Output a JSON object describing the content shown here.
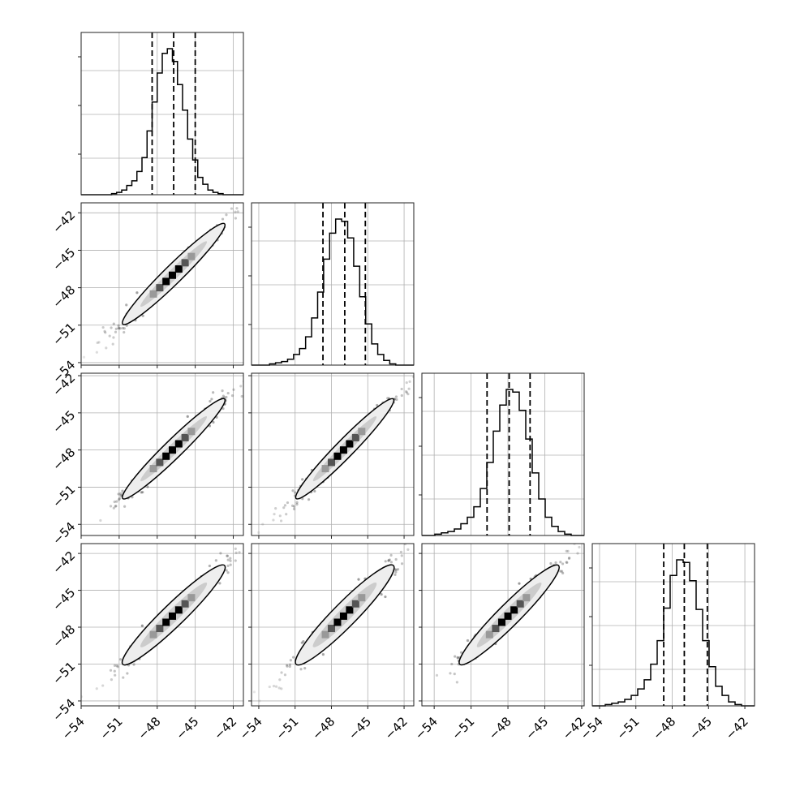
{
  "chart_data": {
    "type": "corner",
    "parameters": 4,
    "bins": [
      -53.5,
      -52.5,
      -51.5,
      -50.5,
      -49.5,
      -48.5,
      -47.5,
      -46.5,
      -45.5,
      -44.5,
      -43.5,
      -42.5,
      -41.5
    ],
    "histograms": [
      {
        "param": 1,
        "range": [
          -54.0,
          -41.2
        ],
        "bin_edges": [
          -54.0,
          -53.6,
          -53.2,
          -52.8,
          -52.4,
          -52.0,
          -51.6,
          -51.2,
          -50.8,
          -50.4,
          -50.0,
          -49.6,
          -49.2,
          -48.8,
          -48.4,
          -48.0,
          -47.6,
          -47.2,
          -46.8,
          -46.4,
          -46.0,
          -45.6,
          -45.2,
          -44.8,
          -44.4,
          -44.0,
          -43.6,
          -43.2,
          -42.8,
          -42.4,
          -42.0,
          -41.6,
          -41.2
        ],
        "counts": [
          0,
          0,
          0,
          0,
          0,
          0,
          1,
          2,
          4,
          8,
          12,
          20,
          32,
          55,
          80,
          105,
          122,
          126,
          115,
          95,
          73,
          48,
          30,
          15,
          9,
          4,
          2,
          1,
          0,
          0,
          0,
          0
        ],
        "quantiles": [
          -48.4,
          -46.7,
          -45.0
        ],
        "xlim": [
          -54.0,
          -41.2
        ]
      },
      {
        "param": 2,
        "range": [
          -54.6,
          -41.2
        ],
        "counts": [
          0,
          0,
          0,
          1,
          2,
          3,
          5,
          9,
          14,
          24,
          40,
          62,
          90,
          112,
          124,
          122,
          108,
          84,
          58,
          35,
          18,
          9,
          4,
          1,
          0,
          0,
          0
        ],
        "quantiles": [
          -48.7,
          -46.9,
          -45.2
        ],
        "xlim": [
          -54.6,
          -41.2
        ]
      },
      {
        "param": 3,
        "range": [
          -55.0,
          -41.8
        ],
        "counts": [
          0,
          0,
          1,
          2,
          3,
          5,
          9,
          14,
          22,
          36,
          56,
          80,
          100,
          112,
          110,
          96,
          74,
          48,
          28,
          14,
          7,
          3,
          1,
          0,
          0
        ],
        "quantiles": [
          -49.7,
          -47.9,
          -46.2
        ],
        "xlim": [
          -55.0,
          -41.8
        ]
      },
      {
        "param": 4,
        "range": [
          -54.6,
          -41.2
        ],
        "counts": [
          0,
          0,
          1,
          2,
          3,
          5,
          8,
          13,
          20,
          32,
          50,
          75,
          100,
          112,
          110,
          96,
          74,
          50,
          30,
          15,
          8,
          3,
          1,
          0,
          0
        ],
        "quantiles": [
          -48.7,
          -47.0,
          -45.1
        ],
        "xlim": [
          -54.6,
          -41.2
        ]
      }
    ],
    "scatter_panels": [
      {
        "x_param": 1,
        "y_param": 2,
        "xlim": [
          -54.0,
          -41.2
        ],
        "ylim": [
          -54.2,
          -41.2
        ],
        "center": [
          -46.7,
          -46.9
        ],
        "slope": 1.0,
        "spread": 0.45
      },
      {
        "x_param": 1,
        "y_param": 3,
        "xlim": [
          -54.0,
          -41.2
        ],
        "ylim": [
          -54.9,
          -41.8
        ],
        "center": [
          -46.7,
          -47.9
        ],
        "slope": 1.0,
        "spread": 0.45
      },
      {
        "x_param": 2,
        "y_param": 3,
        "xlim": [
          -54.6,
          -41.2
        ],
        "ylim": [
          -54.9,
          -41.8
        ],
        "center": [
          -46.9,
          -47.9
        ],
        "slope": 1.0,
        "spread": 0.45
      },
      {
        "x_param": 1,
        "y_param": 4,
        "xlim": [
          -54.0,
          -41.2
        ],
        "ylim": [
          -54.4,
          -41.2
        ],
        "center": [
          -46.7,
          -47.0
        ],
        "slope": 1.0,
        "spread": 0.55
      },
      {
        "x_param": 2,
        "y_param": 4,
        "xlim": [
          -54.6,
          -41.2
        ],
        "ylim": [
          -54.4,
          -41.2
        ],
        "center": [
          -46.9,
          -47.0
        ],
        "slope": 1.0,
        "spread": 0.6
      },
      {
        "x_param": 3,
        "y_param": 4,
        "xlim": [
          -55.0,
          -41.8
        ],
        "ylim": [
          -54.4,
          -41.2
        ],
        "center": [
          -47.9,
          -47.0
        ],
        "slope": 1.0,
        "spread": 0.55
      }
    ],
    "tick_values": [
      -54,
      -51,
      -48,
      -45,
      -42
    ],
    "tick_labels": [
      "−54",
      "−51",
      "−48",
      "−45",
      "−42"
    ],
    "x_tick_labels_col1": [
      "−51",
      "−48",
      "−45",
      "−42"
    ],
    "grid": true,
    "colors": {
      "line": "#000000",
      "points": "#444444",
      "grid": "#b0b0b0"
    }
  }
}
